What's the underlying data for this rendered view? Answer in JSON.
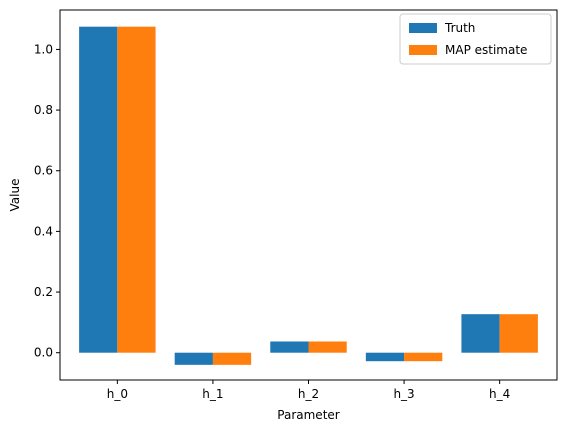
{
  "chart_data": {
    "type": "bar",
    "categories": [
      "h_0",
      "h_1",
      "h_2",
      "h_3",
      "h_4"
    ],
    "series": [
      {
        "name": "Truth",
        "values": [
          1.075,
          -0.04,
          0.037,
          -0.028,
          0.127
        ],
        "color": "#1f77b4"
      },
      {
        "name": "MAP estimate",
        "values": [
          1.075,
          -0.04,
          0.037,
          -0.028,
          0.127
        ],
        "color": "#ff7f0e"
      }
    ],
    "title": "",
    "xlabel": "Parameter",
    "ylabel": "Value",
    "ylim": [
      -0.09,
      1.13
    ],
    "yticks": [
      0.0,
      0.2,
      0.4,
      0.6,
      0.8,
      1.0
    ],
    "ytick_labels": [
      "0.0",
      "0.2",
      "0.4",
      "0.6",
      "0.8",
      "1.0"
    ],
    "legend_position": "top-right",
    "grid": false
  }
}
